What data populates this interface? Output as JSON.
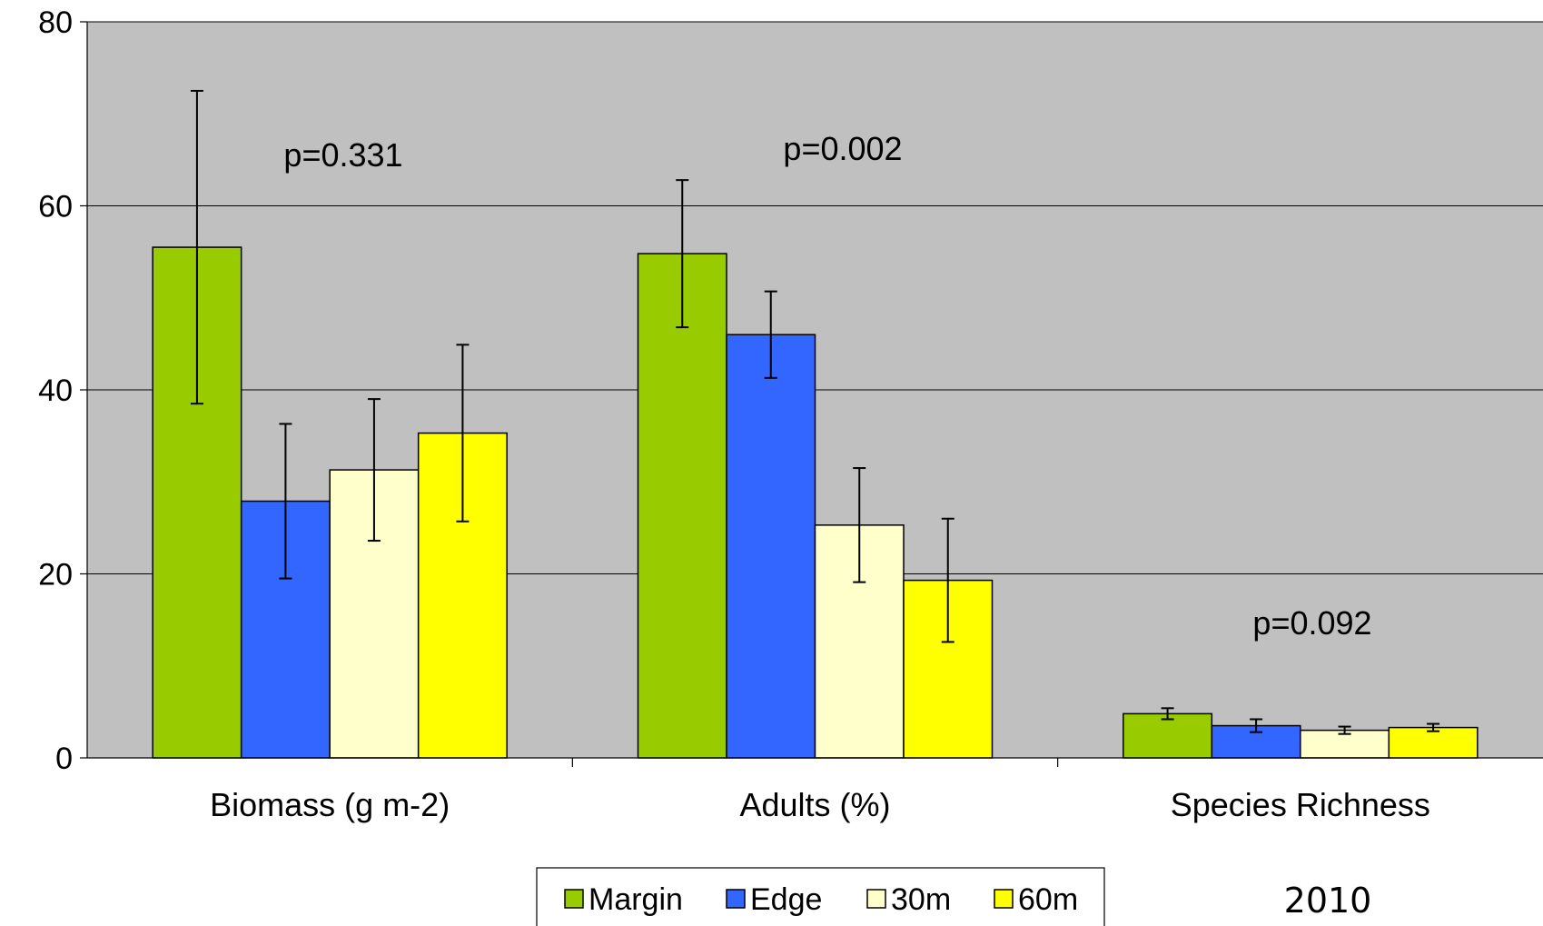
{
  "chart_data": {
    "type": "bar",
    "title": "",
    "xlabel": "",
    "ylabel": "",
    "ylim": [
      0,
      80
    ],
    "yticks": [
      "0",
      "20",
      "40",
      "60",
      "80"
    ],
    "grid": true,
    "plot_background": "#C0C0C0",
    "categories": [
      "Biomass (g m-2)",
      "Adults (%)",
      "Species Richness"
    ],
    "series": [
      {
        "name": "Margin",
        "color": "#99CC00",
        "values": [
          55.5,
          54.8,
          4.8
        ],
        "errors": [
          17.0,
          8.0,
          0.6
        ]
      },
      {
        "name": "Edge",
        "color": "#3366FF",
        "values": [
          27.9,
          46.0,
          3.5
        ],
        "errors": [
          8.4,
          4.7,
          0.7
        ]
      },
      {
        "name": "30m",
        "color": "#FFFFCC",
        "values": [
          31.3,
          25.3,
          3.0
        ],
        "errors": [
          7.7,
          6.2,
          0.4
        ]
      },
      {
        "name": "60m",
        "color": "#FFFF00",
        "values": [
          35.3,
          19.3,
          3.3
        ],
        "errors": [
          9.6,
          6.7,
          0.4
        ]
      }
    ],
    "annotations": [
      {
        "text": "p=0.331",
        "category": 0
      },
      {
        "text": "p=0.002",
        "category": 1
      },
      {
        "text": "p=0.092",
        "category": 2
      }
    ],
    "legend_position": "bottom"
  },
  "footer_text": "2010"
}
